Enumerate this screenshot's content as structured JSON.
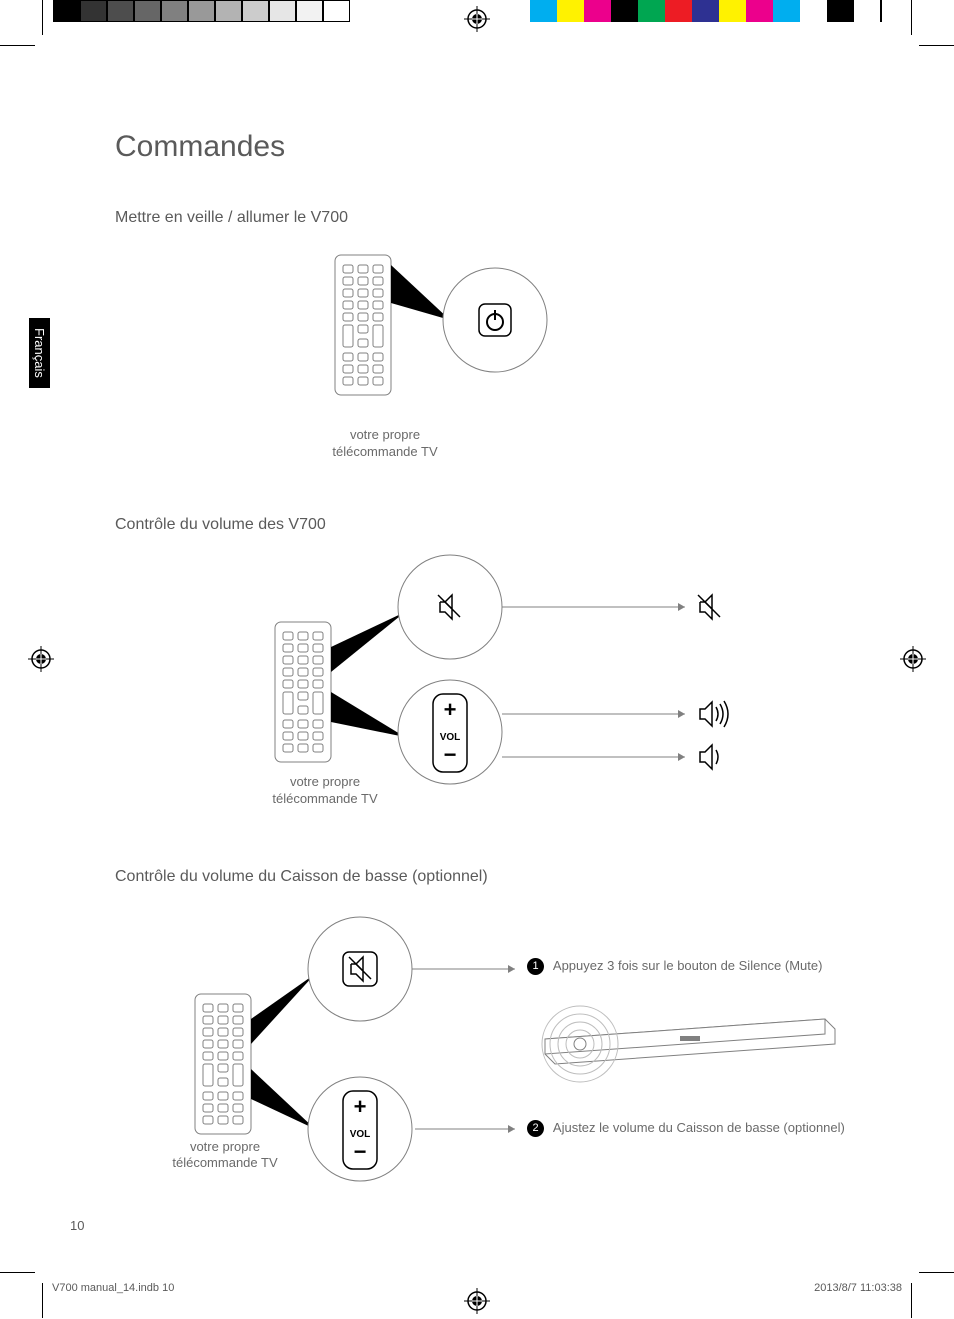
{
  "grayscale_colors": [
    "#000000",
    "#333333",
    "#4d4d4d",
    "#666666",
    "#808080",
    "#999999",
    "#b3b3b3",
    "#cccccc",
    "#e6e6e6",
    "#f2f2f2",
    "#ffffff"
  ],
  "cmyk_colors": [
    "#00aeef",
    "#fff200",
    "#ec008c",
    "#000000",
    "#00a651",
    "#ed1c24",
    "#2e3192",
    "#fff200",
    "#ec008c",
    "#00aeef",
    "#ffffff",
    "#000000"
  ],
  "lang_tab": "Français",
  "title": "Commandes",
  "section1": {
    "heading": "Mettre en veille / allumer le V700",
    "remote_caption": "votre propre\ntélécommande TV"
  },
  "section2": {
    "heading": "Contrôle du volume des V700",
    "remote_caption": "votre propre\ntélécommande TV",
    "vol_label": "VOL"
  },
  "section3": {
    "heading": "Contrôle du volume du Caisson de basse (optionnel)",
    "remote_caption": "votre propre\ntélécommande TV",
    "vol_label": "VOL",
    "step1_num": "1",
    "step1_text": "Appuyez 3 fois sur le bouton de Silence (Mute)",
    "step2_num": "2",
    "step2_text": "Ajustez le volume du Caisson de basse (optionnel)"
  },
  "page_number": "10",
  "footer_left": "V700 manual_14.indb   10",
  "footer_right": "2013/8/7   11:03:38"
}
